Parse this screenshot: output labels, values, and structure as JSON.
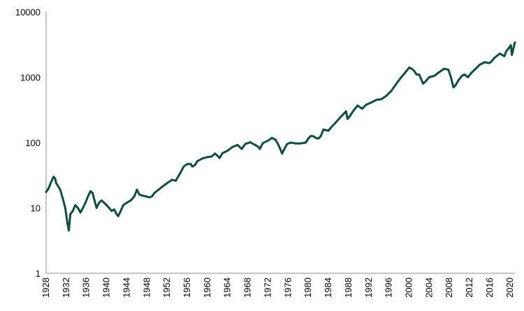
{
  "chart_data": {
    "type": "line",
    "title": "",
    "xlabel": "",
    "ylabel": "",
    "y_scale": "log",
    "ylim": [
      1,
      10000
    ],
    "xlim": [
      1928,
      2021
    ],
    "grid": false,
    "legend": "none",
    "line_color": "#0b4f3f",
    "y_ticks": [
      1,
      10,
      100,
      1000,
      10000
    ],
    "y_tick_labels": [
      "1",
      "10",
      "100",
      "1000",
      "10000"
    ],
    "x_ticks": [
      1928,
      1932,
      1936,
      1940,
      1944,
      1948,
      1952,
      1956,
      1960,
      1964,
      1968,
      1972,
      1976,
      1980,
      1984,
      1988,
      1992,
      1996,
      2000,
      2004,
      2008,
      2012,
      2016,
      2020
    ],
    "x_tick_labels": [
      "1928",
      "1932",
      "1936",
      "1940",
      "1944",
      "1948",
      "1952",
      "1956",
      "1960",
      "1964",
      "1968",
      "1972",
      "1976",
      "1980",
      "1984",
      "1988",
      "1992",
      "1996",
      "2000",
      "2004",
      "2008",
      "2012",
      "2016",
      "2020"
    ],
    "series": [
      {
        "x": [
          1928.0,
          1928.5,
          1929.0,
          1929.5,
          1929.8,
          1930.0,
          1930.3,
          1930.8,
          1931.3,
          1931.8,
          1932.2,
          1932.5,
          1932.8,
          1933.3,
          1933.8,
          1934.3,
          1934.8,
          1935.3,
          1935.8,
          1936.3,
          1936.8,
          1937.2,
          1937.6,
          1938.0,
          1938.5,
          1939.0,
          1939.5,
          1940.0,
          1940.5,
          1941.0,
          1941.5,
          1942.0,
          1942.3,
          1942.8,
          1943.3,
          1944.0,
          1944.8,
          1945.5,
          1946.0,
          1946.5,
          1947.0,
          1947.8,
          1948.5,
          1949.0,
          1949.5,
          1950.3,
          1951.0,
          1952.0,
          1953.0,
          1953.7,
          1954.5,
          1955.3,
          1956.0,
          1956.7,
          1957.0,
          1957.5,
          1958.0,
          1959.0,
          1960.0,
          1960.8,
          1961.5,
          1962.0,
          1962.4,
          1963.0,
          1964.0,
          1965.0,
          1966.0,
          1966.8,
          1967.5,
          1968.5,
          1969.0,
          1969.5,
          1970.0,
          1970.4,
          1971.0,
          1972.0,
          1972.8,
          1973.5,
          1974.0,
          1974.5,
          1974.8,
          1975.2,
          1975.8,
          1976.5,
          1977.5,
          1978.5,
          1979.5,
          1980.0,
          1980.5,
          1981.0,
          1981.5,
          1982.0,
          1982.5,
          1983.0,
          1983.5,
          1984.0,
          1984.5,
          1985.5,
          1986.5,
          1987.5,
          1987.8,
          1988.2,
          1989.0,
          1989.8,
          1990.2,
          1990.7,
          1991.5,
          1992.5,
          1993.5,
          1994.5,
          1995.5,
          1996.5,
          1997.5,
          1998.5,
          1999.5,
          2000.0,
          2000.5,
          2001.0,
          2001.5,
          2002.0,
          2002.5,
          2002.8,
          2003.2,
          2004.0,
          2005.0,
          2006.0,
          2007.0,
          2007.8,
          2008.3,
          2008.8,
          2009.2,
          2009.8,
          2010.5,
          2011.0,
          2011.7,
          2012.3,
          2013.0,
          2014.0,
          2015.0,
          2015.8,
          2016.2,
          2017.0,
          2018.0,
          2018.9,
          2019.3,
          2019.8,
          2020.2,
          2020.4,
          2020.8,
          2021.0
        ],
        "y": [
          17.5,
          20,
          25,
          30,
          28,
          24,
          22,
          19,
          14,
          10,
          6,
          4.5,
          8,
          9,
          11,
          10,
          8.5,
          10,
          12,
          15,
          18,
          17,
          13,
          10,
          12,
          13,
          12,
          11,
          10,
          9,
          9.5,
          8,
          7.5,
          9,
          11,
          12,
          13,
          15,
          19,
          16,
          15.5,
          15,
          14.5,
          15,
          17,
          19,
          21,
          24,
          27,
          26,
          33,
          43,
          47,
          47,
          43,
          45,
          52,
          57,
          60,
          61,
          68,
          63,
          58,
          69,
          75,
          86,
          92,
          80,
          95,
          101,
          96,
          92,
          87,
          80,
          98,
          107,
          118,
          110,
          95,
          78,
          68,
          78,
          95,
          100,
          97,
          97,
          100,
          115,
          126,
          125,
          118,
          115,
          125,
          158,
          155,
          152,
          170,
          205,
          250,
          300,
          230,
          250,
          310,
          370,
          350,
          330,
          380,
          410,
          450,
          460,
          520,
          620,
          800,
          1010,
          1250,
          1400,
          1350,
          1250,
          1100,
          1100,
          900,
          800,
          850,
          1000,
          1050,
          1200,
          1350,
          1300,
          1000,
          700,
          750,
          900,
          1050,
          1100,
          1000,
          1150,
          1300,
          1550,
          1700,
          1650,
          1700,
          2000,
          2300,
          2100,
          2500,
          2800,
          3100,
          2200,
          3000,
          3400
        ]
      }
    ]
  }
}
